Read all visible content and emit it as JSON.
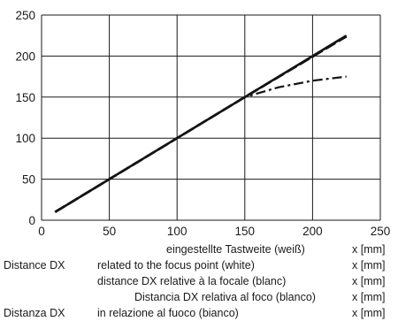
{
  "chart_data": {
    "type": "line",
    "x_ticks": [
      "0",
      "50",
      "100",
      "150",
      "200",
      "250"
    ],
    "y_ticks": [
      "0",
      "50",
      "100",
      "150",
      "200",
      "250"
    ],
    "xlim": [
      0,
      250
    ],
    "ylim": [
      0,
      250
    ],
    "grid": true,
    "series": [
      {
        "style": "solid",
        "x": [
          10,
          225
        ],
        "y": [
          10,
          225
        ]
      },
      {
        "style": "dashed",
        "x": [
          10,
          150,
          225
        ],
        "y": [
          10,
          150,
          224
        ]
      },
      {
        "style": "dash-dot",
        "x": [
          10,
          150,
          175,
          200,
          225
        ],
        "y": [
          10,
          150,
          162,
          170,
          175
        ]
      }
    ]
  },
  "captions": {
    "de_label": "eingestellte Tastweite (weiß)",
    "de_unit": "x [mm]",
    "en_prefix": "Distance DX",
    "en_label": "related to the focus point (white)",
    "en_unit": "x [mm]",
    "fr_label": "distance DX relative à la focale (blanc)",
    "fr_unit": "x [mm]",
    "es_label": "Distancia DX  relativa al foco (blanco)",
    "es_unit": "x [mm]",
    "it_prefix": "Distanza DX",
    "it_label": "in relazione al fuoco (bianco)",
    "it_unit": "x [mm]"
  }
}
